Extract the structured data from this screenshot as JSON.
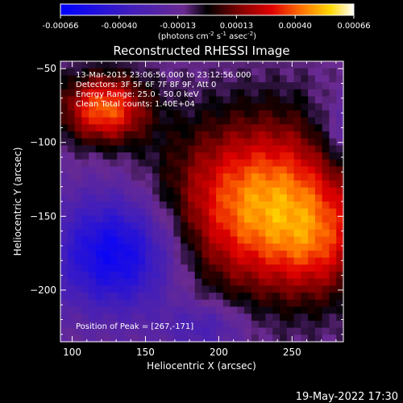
{
  "chart_data": {
    "type": "heatmap",
    "title": "Reconstructed RHESSI Image",
    "xlabel": "Heliocentric X (arcsec)",
    "ylabel": "Heliocentric Y (arcsec)",
    "xlim": [
      92,
      285
    ],
    "ylim": [
      -235,
      -45
    ],
    "xticks": [
      100,
      150,
      200,
      250
    ],
    "yticks": [
      -50,
      -100,
      -150,
      -200
    ],
    "colorbar": {
      "min": -0.00066,
      "max": 0.00066,
      "tick_labels": [
        "-0.00066",
        "-0.00040",
        "-0.00013",
        "0.00013",
        "0.00040",
        "0.00066"
      ],
      "label_prefix": "(photons cm",
      "label_exp1": "-2",
      "label_mid": " s",
      "label_exp2": "-1",
      "label_mid2": " asec",
      "label_exp3": "-2",
      "label_suffix": ")"
    },
    "annotations": [
      "13-Mar-2015 23:06:56.000 to 23:12:56.000",
      "Detectors: 3F 5F 6F 7F 8F 9F, Att 0",
      "Energy Range: 25.0 - 50.0 keV",
      "Clean   Total counts: 1.40E+04"
    ],
    "peak_label": "Position of Peak = [267,-171]",
    "peak": [
      267,
      -171
    ],
    "sources": [
      {
        "x": 232,
        "y": -142,
        "sx": 46,
        "sy": 40,
        "amp": 0.0006
      },
      {
        "x": 268,
        "y": -172,
        "sx": 22,
        "sy": 24,
        "amp": 0.00018
      },
      {
        "x": 122,
        "y": -77,
        "sx": 20,
        "sy": 16,
        "amp": 0.00052
      },
      {
        "x": 130,
        "y": -175,
        "sx": 30,
        "sy": 28,
        "amp": -0.0005
      },
      {
        "x": 190,
        "y": -225,
        "sx": 20,
        "sy": 12,
        "amp": -0.0002
      },
      {
        "x": 285,
        "y": -95,
        "sx": 14,
        "sy": 20,
        "amp": -0.00018
      }
    ],
    "background": -0.00012
  },
  "footer": {
    "timestamp": "19-May-2022 17:30"
  }
}
